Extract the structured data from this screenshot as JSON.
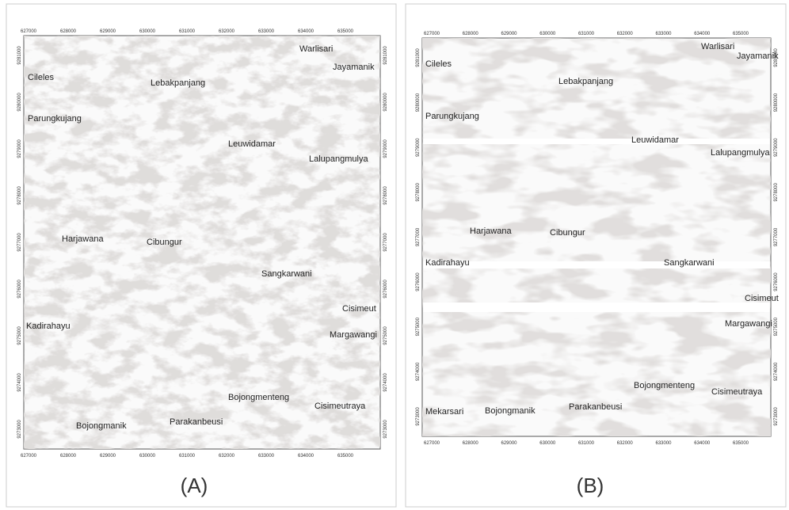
{
  "panels": [
    {
      "label": "(A)",
      "x_ticks": [
        "627000",
        "628000",
        "629000",
        "630000",
        "631000",
        "632000",
        "633000",
        "634000",
        "635000"
      ],
      "y_ticks": [
        "9281000",
        "9280000",
        "9279000",
        "9278000",
        "9277000",
        "9276000",
        "9275000",
        "9274000",
        "9273000"
      ],
      "places": [
        {
          "name": "Cileles"
        },
        {
          "name": "Warlisari"
        },
        {
          "name": "Jayamanik"
        },
        {
          "name": "Lebakpanjang"
        },
        {
          "name": "Parungkujang"
        },
        {
          "name": "Leuwidamar"
        },
        {
          "name": "Lalupangmulya"
        },
        {
          "name": "Harjawana"
        },
        {
          "name": "Cibungur"
        },
        {
          "name": "Sangkarwani"
        },
        {
          "name": "Cisimeut"
        },
        {
          "name": "Kadirahayu"
        },
        {
          "name": "Margawangi"
        },
        {
          "name": "Bojongmenteng"
        },
        {
          "name": "Cisimeutraya"
        },
        {
          "name": "Bojongmanik"
        },
        {
          "name": "Parakanbeusi"
        }
      ]
    },
    {
      "label": "(B)",
      "x_ticks": [
        "627000",
        "628000",
        "629000",
        "630000",
        "631000",
        "632000",
        "633000",
        "634000",
        "635000"
      ],
      "y_ticks": [
        "9281000",
        "9280000",
        "9279000",
        "9278000",
        "9277000",
        "9276000",
        "9275000",
        "9274000",
        "9273000"
      ],
      "places": [
        {
          "name": "Cileles"
        },
        {
          "name": "Warlisari"
        },
        {
          "name": "Jayamanik"
        },
        {
          "name": "Lebakpanjang"
        },
        {
          "name": "Parungkujang"
        },
        {
          "name": "Leuwidamar"
        },
        {
          "name": "Lalupangmulya"
        },
        {
          "name": "Harjawana"
        },
        {
          "name": "Cibungur"
        },
        {
          "name": "Kadirahayu"
        },
        {
          "name": "Sangkarwani"
        },
        {
          "name": "Cisimeut"
        },
        {
          "name": "Margawangi"
        },
        {
          "name": "Bojongmenteng"
        },
        {
          "name": "Cisimeutraya"
        },
        {
          "name": "Mekarsari"
        },
        {
          "name": "Bojongmanik"
        },
        {
          "name": "Parakanbeusi"
        }
      ]
    }
  ]
}
